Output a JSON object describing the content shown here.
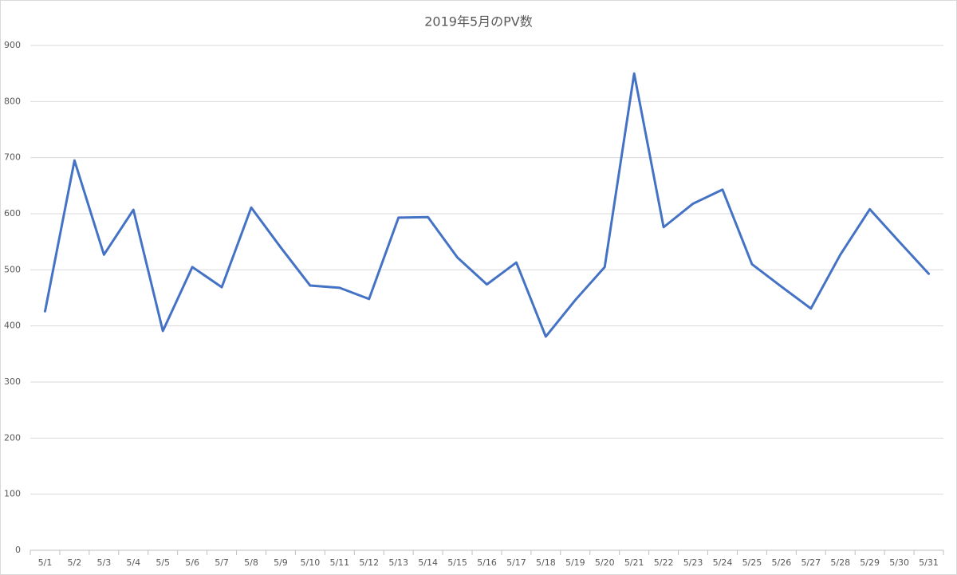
{
  "chart_data": {
    "type": "line",
    "title": "2019年5月のPV数",
    "categories": [
      "5/1",
      "5/2",
      "5/3",
      "5/4",
      "5/5",
      "5/6",
      "5/7",
      "5/8",
      "5/9",
      "5/10",
      "5/11",
      "5/12",
      "5/13",
      "5/14",
      "5/15",
      "5/16",
      "5/17",
      "5/18",
      "5/19",
      "5/20",
      "5/21",
      "5/22",
      "5/23",
      "5/24",
      "5/25",
      "5/26",
      "5/27",
      "5/28",
      "5/29",
      "5/30",
      "5/31"
    ],
    "values": [
      426,
      695,
      527,
      607,
      391,
      505,
      469,
      611,
      540,
      472,
      468,
      448,
      593,
      594,
      522,
      474,
      513,
      381,
      446,
      505,
      850,
      576,
      618,
      643,
      510,
      470,
      431,
      527,
      608,
      550,
      493
    ],
    "color": "#4472c4",
    "ylim": [
      0,
      900
    ],
    "yticks": [
      0,
      100,
      200,
      300,
      400,
      500,
      600,
      700,
      800,
      900
    ],
    "grid": true
  }
}
